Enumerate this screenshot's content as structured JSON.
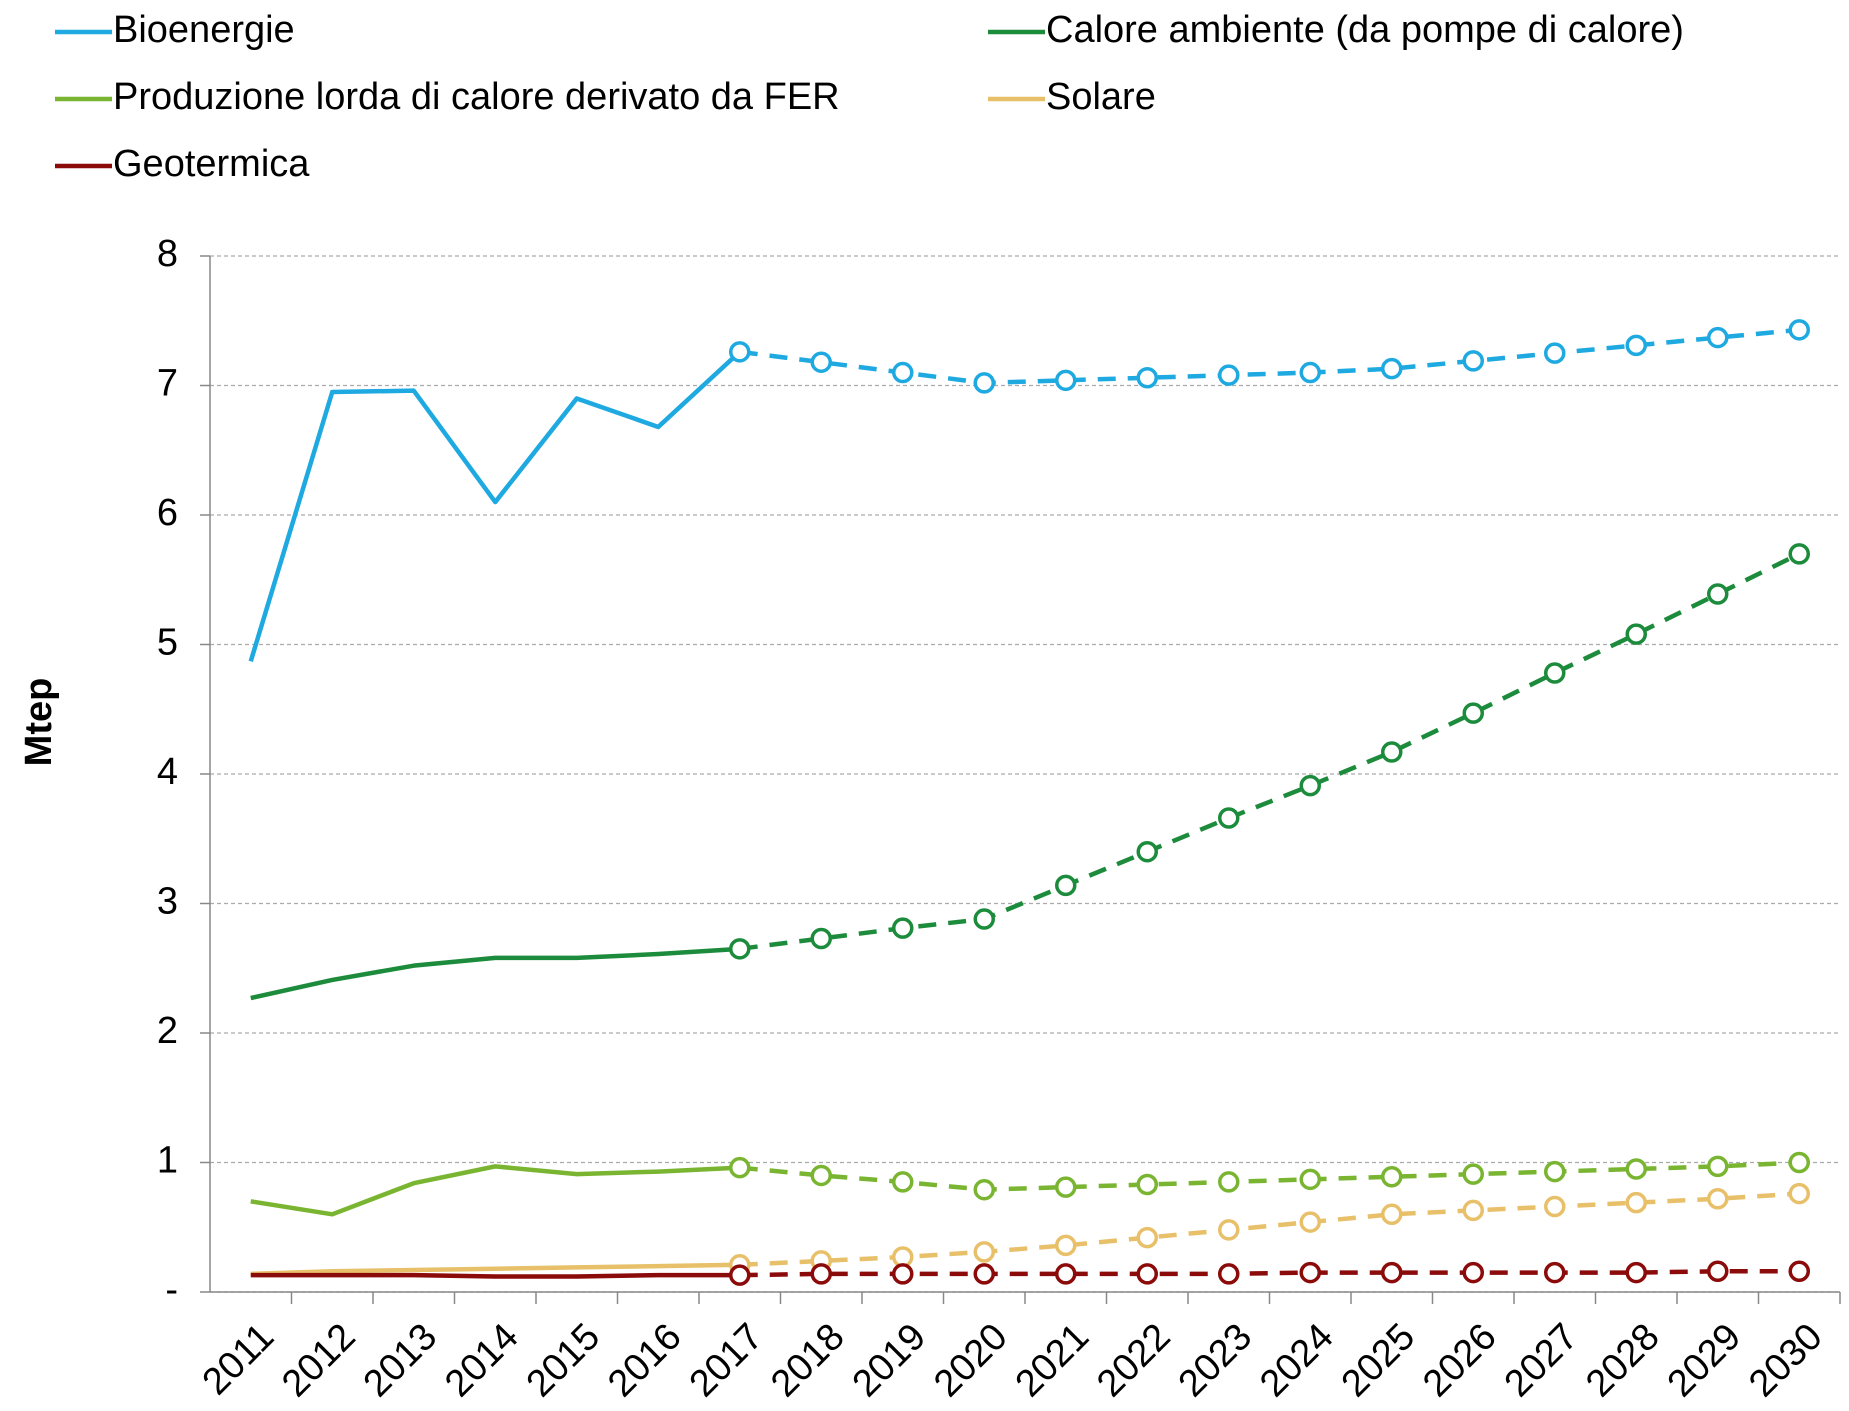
{
  "chart_data": {
    "type": "line",
    "y_label": "Mtep",
    "categories": [
      "2011",
      "2012",
      "2013",
      "2014",
      "2015",
      "2016",
      "2017",
      "2018",
      "2019",
      "2020",
      "2021",
      "2022",
      "2023",
      "2024",
      "2025",
      "2026",
      "2027",
      "2028",
      "2029",
      "2030"
    ],
    "dashed_from": "2017",
    "series": [
      {
        "name": "Bioenergie",
        "color": "#1ea9e1",
        "values": [
          4.87,
          6.95,
          6.96,
          6.1,
          6.9,
          6.68,
          7.26,
          7.18,
          7.1,
          7.02,
          7.04,
          7.06,
          7.08,
          7.1,
          7.13,
          7.19,
          7.25,
          7.31,
          7.37,
          7.43
        ]
      },
      {
        "name": "Calore ambiente (da pompe di calore)",
        "color": "#1c8c3c",
        "values": [
          2.27,
          2.41,
          2.52,
          2.58,
          2.58,
          2.61,
          2.65,
          2.73,
          2.81,
          2.88,
          3.14,
          3.4,
          3.66,
          3.91,
          4.17,
          4.47,
          4.78,
          5.08,
          5.39,
          5.7
        ]
      },
      {
        "name": "Produzione lorda di calore derivato da FER",
        "color": "#7ab532",
        "values": [
          0.7,
          0.6,
          0.84,
          0.97,
          0.91,
          0.93,
          0.96,
          0.9,
          0.85,
          0.79,
          0.81,
          0.83,
          0.85,
          0.87,
          0.89,
          0.91,
          0.93,
          0.95,
          0.97,
          1.0
        ]
      },
      {
        "name": "Solare",
        "color": "#e8c06a",
        "values": [
          0.14,
          0.16,
          0.17,
          0.18,
          0.19,
          0.2,
          0.21,
          0.24,
          0.27,
          0.31,
          0.36,
          0.42,
          0.48,
          0.54,
          0.6,
          0.63,
          0.66,
          0.69,
          0.72,
          0.76
        ]
      },
      {
        "name": "Geotermica",
        "color": "#8b0a0a",
        "values": [
          0.13,
          0.13,
          0.13,
          0.12,
          0.12,
          0.13,
          0.13,
          0.14,
          0.14,
          0.14,
          0.14,
          0.14,
          0.14,
          0.15,
          0.15,
          0.15,
          0.15,
          0.15,
          0.16,
          0.16
        ]
      }
    ],
    "ylim": [
      0,
      8
    ],
    "yticks": [
      {
        "value": 0,
        "label": "-"
      },
      1,
      2,
      3,
      4,
      5,
      6,
      7,
      8
    ],
    "grid": true
  }
}
